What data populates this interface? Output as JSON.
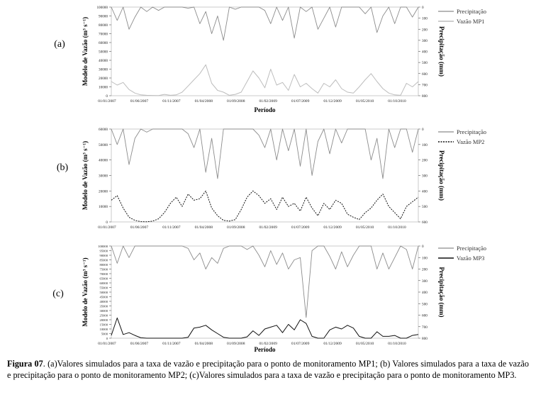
{
  "chart_data": [
    {
      "panel_label": "(a)",
      "type": "line",
      "xlabel": "Período",
      "ylabel_left": "Modelo de Vazão (m³ s⁻¹)",
      "ylabel_right": "Precipitação (mm)",
      "x_ticks": [
        "01/01/2007",
        "01/06/2007",
        "01/11/2007",
        "01/04/2008",
        "01/09/2008",
        "01/02/2009",
        "01/07/2009",
        "01/12/2009",
        "01/05/2010",
        "01/10/2010"
      ],
      "ylim_left": [
        0,
        100000
      ],
      "yticks_left": [
        "0",
        "10000",
        "20000",
        "30000",
        "40000",
        "50000",
        "60000",
        "70000",
        "80000",
        "90000",
        "100000"
      ],
      "ylim_right": [
        800,
        0
      ],
      "yticks_right": [
        "0",
        "100",
        "200",
        "300",
        "400",
        "500",
        "600",
        "700",
        "800"
      ],
      "legend": [
        "Precipitação",
        "Vazão MP1"
      ],
      "legend_position": "top-right",
      "series": [
        {
          "name": "Precipitação",
          "axis": "right",
          "color": "#8c8c8c",
          "x": [
            0,
            4,
            8,
            12,
            16,
            20,
            24,
            28,
            32,
            36,
            40,
            44,
            48,
            52,
            56,
            60,
            64,
            68,
            72,
            76,
            80,
            84,
            88,
            92,
            96,
            100,
            104,
            108,
            112,
            116,
            120,
            124,
            128,
            132,
            136,
            140,
            144,
            148,
            152,
            156,
            160,
            164,
            168,
            172,
            176,
            180,
            184,
            188,
            192,
            196,
            200,
            204,
            208
          ],
          "y": [
            0,
            120,
            0,
            200,
            90,
            0,
            40,
            0,
            30,
            0,
            0,
            0,
            0,
            10,
            0,
            150,
            40,
            240,
            80,
            300,
            0,
            20,
            0,
            0,
            0,
            0,
            30,
            150,
            0,
            120,
            0,
            280,
            0,
            40,
            0,
            200,
            100,
            0,
            180,
            0,
            0,
            0,
            0,
            60,
            0,
            230,
            80,
            0,
            150,
            0,
            0,
            90,
            0
          ]
        },
        {
          "name": "Vazão MP1",
          "axis": "left",
          "color": "#bdbdbd",
          "x": [
            0,
            4,
            8,
            12,
            16,
            20,
            24,
            28,
            32,
            36,
            40,
            44,
            48,
            52,
            56,
            60,
            64,
            68,
            72,
            76,
            80,
            84,
            88,
            92,
            96,
            100,
            104,
            108,
            112,
            116,
            120,
            124,
            128,
            132,
            136,
            140,
            144,
            148,
            152,
            156,
            160,
            164,
            168,
            172,
            176,
            180,
            184,
            188,
            192,
            196,
            200,
            204,
            208
          ],
          "y": [
            16000,
            12000,
            15000,
            7000,
            3000,
            1000,
            500,
            300,
            200,
            1500,
            500,
            1000,
            4000,
            11000,
            18000,
            25000,
            35000,
            14000,
            6000,
            4000,
            500,
            1500,
            4000,
            16000,
            28000,
            20000,
            9000,
            30000,
            12000,
            15000,
            6000,
            24000,
            10000,
            14000,
            8000,
            3000,
            14000,
            10000,
            18000,
            8000,
            4000,
            3000,
            10000,
            18000,
            25000,
            16000,
            8000,
            3000,
            1000,
            500,
            14000,
            10000,
            16000
          ]
        }
      ]
    },
    {
      "panel_label": "(b)",
      "type": "line",
      "xlabel": "",
      "ylabel_left": "Modelo de Vazão (m³ s⁻¹)",
      "ylabel_right": "Precipitação (mm)",
      "x_ticks": [
        "01/01/2007",
        "01/06/2007",
        "01/11/2007",
        "01/04/2008",
        "01/09/2008",
        "01/02/2009",
        "01/07/2009",
        "01/12/2009",
        "01/05/2010",
        "01/10/2010"
      ],
      "ylim_left": [
        0,
        60000
      ],
      "yticks_left": [
        "0",
        "10000",
        "20000",
        "30000",
        "40000",
        "50000",
        "60000"
      ],
      "ylim_right": [
        600,
        0
      ],
      "yticks_right": [
        "0",
        "100",
        "200",
        "300",
        "400",
        "500",
        "600"
      ],
      "legend": [
        "Precipitação",
        "Vazão MP2"
      ],
      "legend_position": "top-right",
      "series": [
        {
          "name": "Precipitação",
          "axis": "right",
          "color": "#8c8c8c",
          "x": [
            0,
            4,
            8,
            12,
            16,
            20,
            24,
            28,
            32,
            36,
            40,
            44,
            48,
            52,
            56,
            60,
            64,
            68,
            72,
            76,
            80,
            84,
            88,
            92,
            96,
            100,
            104,
            108,
            112,
            116,
            120,
            124,
            128,
            132,
            136,
            140,
            144,
            148,
            152,
            156,
            160,
            164,
            168,
            172,
            176,
            180,
            184,
            188,
            192,
            196,
            200,
            204,
            208
          ],
          "y": [
            0,
            100,
            0,
            230,
            60,
            0,
            20,
            0,
            0,
            0,
            0,
            0,
            0,
            30,
            120,
            0,
            280,
            60,
            320,
            0,
            0,
            0,
            0,
            0,
            0,
            40,
            120,
            0,
            200,
            0,
            140,
            0,
            240,
            0,
            300,
            80,
            0,
            160,
            0,
            90,
            0,
            0,
            0,
            0,
            200,
            60,
            320,
            0,
            120,
            0,
            0,
            150,
            0
          ]
        },
        {
          "name": "Vazão MP2",
          "axis": "left",
          "color": "#111111",
          "dash": "2,1.5",
          "x": [
            0,
            4,
            8,
            12,
            16,
            20,
            24,
            28,
            32,
            36,
            40,
            44,
            48,
            52,
            56,
            60,
            64,
            68,
            72,
            76,
            80,
            84,
            88,
            92,
            96,
            100,
            104,
            108,
            112,
            116,
            120,
            124,
            128,
            132,
            136,
            140,
            144,
            148,
            152,
            156,
            160,
            164,
            168,
            172,
            176,
            180,
            184,
            188,
            192,
            196,
            200,
            204,
            208
          ],
          "y": [
            14000,
            17000,
            9000,
            3000,
            1000,
            200,
            100,
            500,
            2000,
            6000,
            12000,
            16000,
            10000,
            18000,
            14000,
            15000,
            20000,
            9000,
            4000,
            1000,
            500,
            1500,
            8000,
            16000,
            20000,
            17000,
            12000,
            15000,
            8000,
            16000,
            10000,
            12000,
            7000,
            16000,
            9000,
            4000,
            12000,
            8000,
            14000,
            12000,
            5000,
            3000,
            1500,
            6000,
            9000,
            14000,
            18000,
            10000,
            6000,
            2000,
            10000,
            13000,
            16000
          ]
        }
      ]
    },
    {
      "panel_label": "(c)",
      "type": "line",
      "xlabel": "Período",
      "ylabel_left": "Modelo de Vazão (m³ s⁻¹)",
      "ylabel_right": "Precipitação (mm)",
      "x_ticks": [
        "01/01/2007",
        "01/06/2007",
        "01/11/2007",
        "01/04/2008",
        "01/09/2008",
        "01/02/2009",
        "01/07/2009",
        "01/12/2009",
        "01/05/2010",
        "01/10/2010"
      ],
      "ylim_left": [
        0,
        100000
      ],
      "yticks_left": [
        "0",
        "5000",
        "10000",
        "15000",
        "20000",
        "25000",
        "30000",
        "35000",
        "40000",
        "45000",
        "50000",
        "55000",
        "60000",
        "65000",
        "70000",
        "75000",
        "80000",
        "85000",
        "90000",
        "95000",
        "100000"
      ],
      "ylim_right": [
        800,
        0
      ],
      "yticks_right": [
        "0",
        "100",
        "200",
        "300",
        "400",
        "500",
        "600",
        "700",
        "800"
      ],
      "legend": [
        "Precipitação",
        "Vazão MP3"
      ],
      "legend_position": "top-right",
      "series": [
        {
          "name": "Precipitação",
          "axis": "right",
          "color": "#8c8c8c",
          "x": [
            0,
            4,
            8,
            12,
            16,
            20,
            24,
            28,
            32,
            36,
            40,
            44,
            48,
            52,
            56,
            60,
            64,
            68,
            72,
            76,
            80,
            84,
            88,
            92,
            96,
            100,
            104,
            108,
            112,
            116,
            120,
            124,
            128,
            132,
            136,
            140,
            144,
            148,
            152,
            156,
            160,
            164,
            168,
            172,
            176,
            180,
            184,
            188,
            192,
            196,
            200,
            204,
            208
          ],
          "y": [
            0,
            150,
            0,
            100,
            0,
            0,
            0,
            0,
            0,
            0,
            0,
            0,
            0,
            20,
            120,
            60,
            200,
            100,
            150,
            20,
            0,
            0,
            0,
            30,
            0,
            80,
            180,
            40,
            160,
            60,
            200,
            120,
            100,
            620,
            40,
            0,
            0,
            90,
            200,
            50,
            180,
            80,
            0,
            0,
            0,
            200,
            60,
            200,
            100,
            0,
            30,
            200,
            0
          ]
        },
        {
          "name": "Vazão MP3",
          "axis": "left",
          "color": "#111111",
          "x": [
            0,
            4,
            8,
            12,
            16,
            20,
            24,
            28,
            32,
            36,
            40,
            44,
            48,
            52,
            56,
            60,
            64,
            68,
            72,
            76,
            80,
            84,
            88,
            92,
            96,
            100,
            104,
            108,
            112,
            116,
            120,
            124,
            128,
            132,
            136,
            140,
            144,
            148,
            152,
            156,
            160,
            164,
            168,
            172,
            176,
            180,
            184,
            188,
            192,
            196,
            200,
            204,
            208
          ],
          "y": [
            3000,
            22000,
            4000,
            6000,
            3000,
            500,
            0,
            0,
            0,
            0,
            0,
            0,
            0,
            1000,
            11000,
            12000,
            14000,
            9000,
            5000,
            1000,
            0,
            0,
            0,
            1500,
            8000,
            3000,
            10000,
            12000,
            14000,
            6000,
            15000,
            9000,
            20000,
            16000,
            2000,
            0,
            0,
            9000,
            12000,
            10000,
            14000,
            11000,
            2000,
            0,
            0,
            7000,
            2000,
            2000,
            3000,
            0,
            0,
            3000,
            4000
          ]
        }
      ]
    }
  ],
  "caption": {
    "fig_label": "Figura 07",
    "text": ". (a)Valores simulados para a taxa de vazão e precipitação para o ponto de monitoramento MP1; (b) Valores simulados para a taxa de vazão e precipitação para o ponto de monitoramento MP2; (c)Valores simulados para a taxa de vazão e  precipitação para o ponto de monitoramento MP3."
  }
}
